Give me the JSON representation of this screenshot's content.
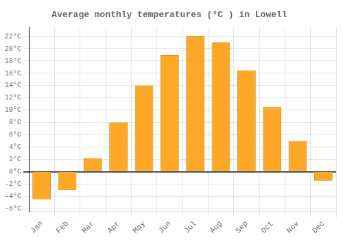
{
  "chart_data": {
    "type": "bar",
    "title": "Average monthly temperatures (°C ) in Lowell",
    "categories": [
      "Jan",
      "Feb",
      "Mar",
      "Apr",
      "May",
      "Jun",
      "Jul",
      "Aug",
      "Sep",
      "Oct",
      "Nov",
      "Dec"
    ],
    "values": [
      -4.5,
      -3.0,
      2.2,
      8.0,
      14.0,
      19.0,
      22.0,
      21.0,
      16.5,
      10.5,
      5.0,
      -1.5
    ],
    "color": "#FFA726",
    "ylim": [
      -6.5,
      23.5
    ],
    "yticks": [
      {
        "value": -6,
        "label": "-6°C"
      },
      {
        "value": -4,
        "label": "-4°C"
      },
      {
        "value": -2,
        "label": "-2°C"
      },
      {
        "value": 0,
        "label": "0°C"
      },
      {
        "value": 2,
        "label": "2°C"
      },
      {
        "value": 4,
        "label": "4°C"
      },
      {
        "value": 6,
        "label": "6°C"
      },
      {
        "value": 8,
        "label": "8°C"
      },
      {
        "value": 10,
        "label": "10°C"
      },
      {
        "value": 12,
        "label": "12°C"
      },
      {
        "value": 14,
        "label": "14°C"
      },
      {
        "value": 16,
        "label": "16°C"
      },
      {
        "value": 18,
        "label": "18°C"
      },
      {
        "value": 20,
        "label": "20°C"
      },
      {
        "value": 22,
        "label": "22°C"
      }
    ],
    "grid": true
  }
}
